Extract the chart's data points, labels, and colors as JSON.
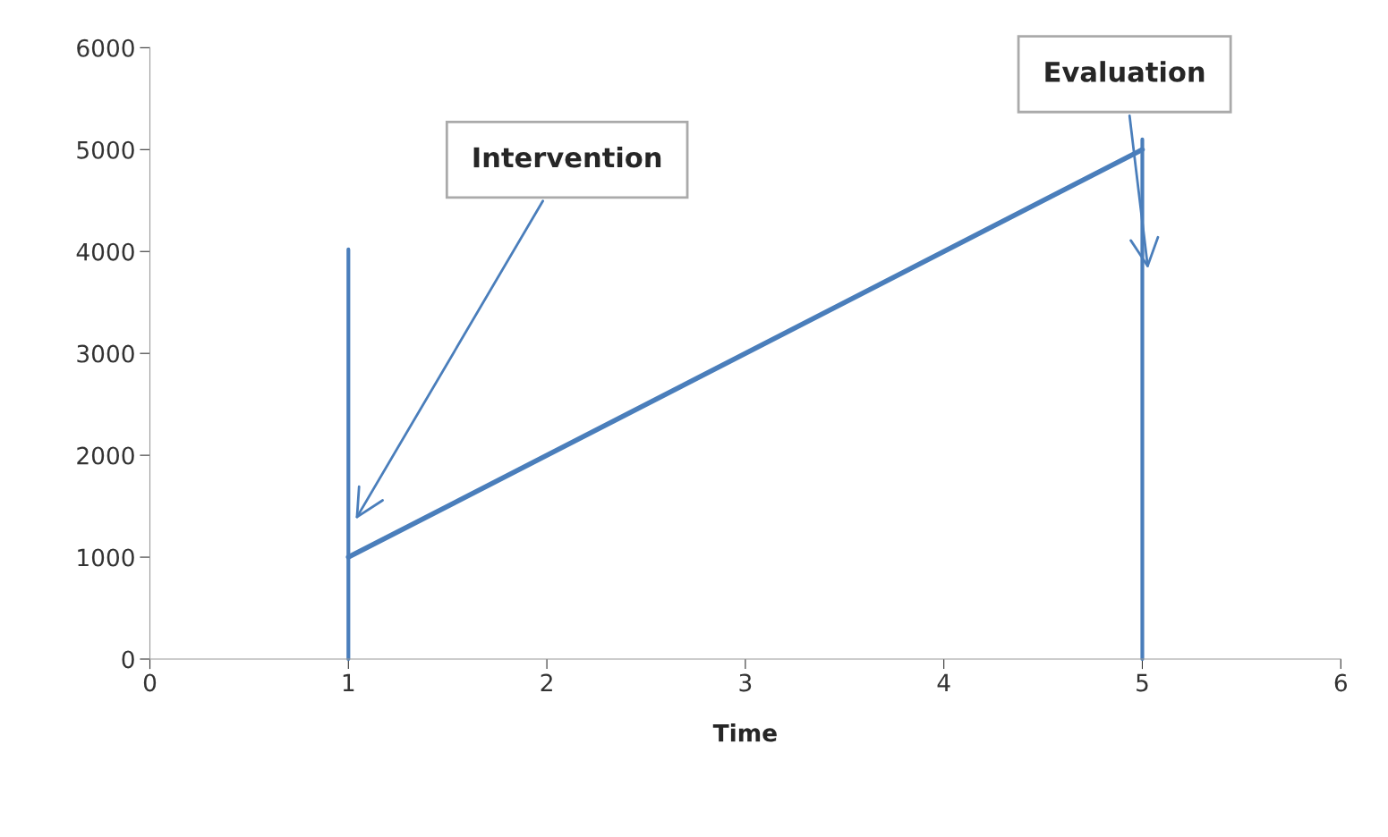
{
  "chart_data": {
    "type": "line",
    "xlabel": "Time",
    "x": [
      1,
      5
    ],
    "series": [
      {
        "color": "#4a7ebb",
        "values": [
          1000,
          5000
        ]
      }
    ],
    "xlim": [
      0,
      6
    ],
    "xticks": [
      0,
      1,
      2,
      3,
      4,
      5,
      6
    ],
    "ylim": [
      0,
      6000
    ],
    "yticks": [
      0,
      1000,
      2000,
      3000,
      4000,
      5000,
      6000
    ],
    "grid": false,
    "legend": false,
    "marker": "none",
    "line_style": "solid",
    "ref_lines": [
      {
        "axis": "x",
        "value": 1,
        "label": "Intervention",
        "color": "#4a7ebb"
      },
      {
        "axis": "x",
        "value": 5,
        "label": "Evaluation",
        "color": "#4a7ebb"
      }
    ]
  }
}
